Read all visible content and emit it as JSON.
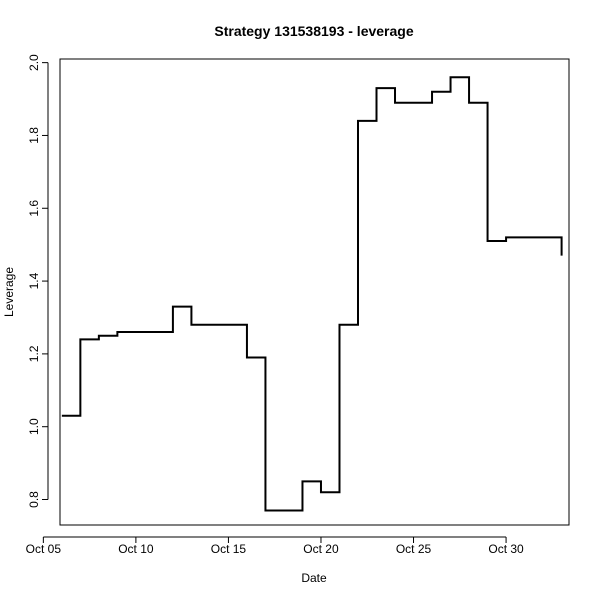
{
  "chart_data": {
    "type": "line",
    "title": "Strategy 131538193 - leverage",
    "xlabel": "Date",
    "ylabel": "Leverage",
    "xlim": [
      5.9,
      33.4
    ],
    "ylim": [
      0.73,
      2.01
    ],
    "x_ticks": [
      {
        "value": 5,
        "label": "Oct 05"
      },
      {
        "value": 10,
        "label": "Oct 10"
      },
      {
        "value": 15,
        "label": "Oct 15"
      },
      {
        "value": 20,
        "label": "Oct 20"
      },
      {
        "value": 25,
        "label": "Oct 25"
      },
      {
        "value": 30,
        "label": "Oct 30"
      }
    ],
    "y_ticks": [
      {
        "value": 0.8,
        "label": "0.8"
      },
      {
        "value": 1.0,
        "label": "1.0"
      },
      {
        "value": 1.2,
        "label": "1.2"
      },
      {
        "value": 1.4,
        "label": "1.4"
      },
      {
        "value": 1.6,
        "label": "1.6"
      },
      {
        "value": 1.8,
        "label": "1.8"
      },
      {
        "value": 2.0,
        "label": "2.0"
      }
    ],
    "step": true,
    "grid": false,
    "series": [
      {
        "x": [
          6,
          7,
          8,
          9,
          10,
          11,
          12,
          13,
          14,
          15,
          16,
          17,
          18,
          19,
          20,
          21,
          22,
          23,
          24,
          25,
          26,
          27,
          28,
          29,
          30,
          31,
          32,
          33
        ],
        "y": [
          1.03,
          1.24,
          1.25,
          1.26,
          1.26,
          1.26,
          1.33,
          1.28,
          1.28,
          1.28,
          1.19,
          0.77,
          0.77,
          0.85,
          0.82,
          1.28,
          1.84,
          1.93,
          1.89,
          1.89,
          1.92,
          1.96,
          1.89,
          1.51,
          1.52,
          1.52,
          1.52,
          1.47
        ],
        "color": "#000000"
      }
    ]
  }
}
